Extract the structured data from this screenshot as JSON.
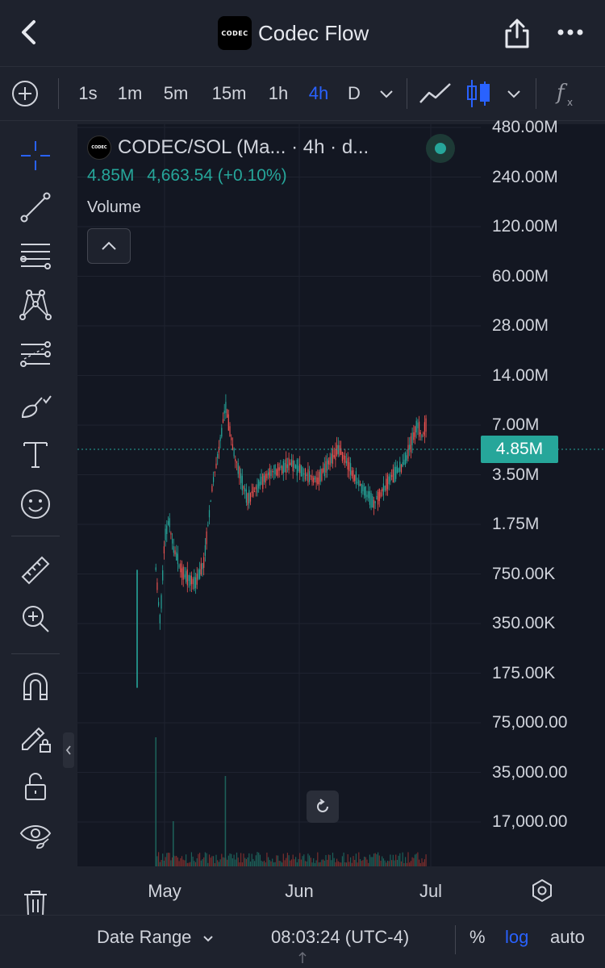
{
  "app": {
    "title": "Codec Flow",
    "logo_text": "CODEC"
  },
  "toolbar": {
    "intervals": [
      "1s",
      "1m",
      "5m",
      "15m",
      "1h",
      "4h",
      "D"
    ],
    "active_interval": "4h"
  },
  "left_tools": [
    "crosshair-icon",
    "trend-line-icon",
    "fib-retracement-icon",
    "pattern-icon",
    "prediction-icon",
    "brush-icon",
    "text-icon",
    "emoji-icon",
    "ruler-icon",
    "zoom-in-icon",
    "magnet-icon",
    "lock-drawing-icon",
    "unlock-icon",
    "eye-icon",
    "trash-icon"
  ],
  "legend": {
    "logo_text": "CODEC",
    "symbol": "CODEC/SOL (Ma... · 4h · d...",
    "last_price": "4.85M",
    "change": "4,663.54 (+0.10%)",
    "volume_label": "Volume",
    "status": "market-open"
  },
  "price_axis": {
    "labels": [
      "480.00M",
      "240.00M",
      "120.00M",
      "60.00M",
      "28.00M",
      "14.00M",
      "7.00M",
      "3.50M",
      "1.75M",
      "750.00K",
      "350.00K",
      "175.00K",
      "75,000.00",
      "35,000.00",
      "17,000.00"
    ],
    "current_price_tag": "4.85M",
    "scale": "log"
  },
  "time_axis": {
    "labels": [
      "May",
      "Jun",
      "Jul"
    ]
  },
  "bottom_bar": {
    "date_range_label": "Date Range",
    "clock": "08:03:24 (UTC-4)",
    "percent_label": "%",
    "log_label": "log",
    "auto_label": "auto",
    "log_active": true
  },
  "colors": {
    "background": "#131722",
    "panel": "#1e222d",
    "up": "#26a69a",
    "down": "#ef5350",
    "accent": "#2962ff"
  },
  "chart_data": {
    "type": "candlestick",
    "symbol": "CODEC/SOL",
    "interval": "4h",
    "scale": "log",
    "x_ticks": [
      "May",
      "Jun",
      "Jul"
    ],
    "y_ticks": [
      "480.00M",
      "240.00M",
      "120.00M",
      "60.00M",
      "28.00M",
      "14.00M",
      "7.00M",
      "3.50M",
      "1.75M",
      "750.00K",
      "350.00K",
      "175.00K",
      "75,000.00",
      "35,000.00",
      "17,000.00"
    ],
    "last_price": 4850000,
    "series": [
      {
        "name": "Price",
        "approx_close_path": [
          {
            "date": "Apr 29",
            "value": 80000
          },
          {
            "date": "Apr 29",
            "value": 500000
          },
          {
            "date": "Apr 30",
            "value": 220000
          },
          {
            "date": "May 1",
            "value": 800000
          },
          {
            "date": "May 2",
            "value": 1100000
          },
          {
            "date": "May 3",
            "value": 700000
          },
          {
            "date": "May 5",
            "value": 480000
          },
          {
            "date": "May 8",
            "value": 400000
          },
          {
            "date": "May 10",
            "value": 550000
          },
          {
            "date": "May 12",
            "value": 1800000
          },
          {
            "date": "May 14",
            "value": 4000000
          },
          {
            "date": "May 15",
            "value": 6500000
          },
          {
            "date": "May 17",
            "value": 3000000
          },
          {
            "date": "May 20",
            "value": 1500000
          },
          {
            "date": "May 25",
            "value": 2200000
          },
          {
            "date": "May 30",
            "value": 2600000
          },
          {
            "date": "Jun 5",
            "value": 2000000
          },
          {
            "date": "Jun 10",
            "value": 3300000
          },
          {
            "date": "Jun 15",
            "value": 1800000
          },
          {
            "date": "Jun 18",
            "value": 1400000
          },
          {
            "date": "Jun 22",
            "value": 2100000
          },
          {
            "date": "Jun 25",
            "value": 2600000
          },
          {
            "date": "Jun 28",
            "value": 4800000
          },
          {
            "date": "Jun 29",
            "value": 3900000
          },
          {
            "date": "Jun 30",
            "value": 4850000
          }
        ]
      },
      {
        "name": "Volume",
        "notable_spikes": [
          {
            "date": "Apr 29",
            "relative": 1.0
          },
          {
            "date": "May 15",
            "relative": 0.7
          },
          {
            "date": "May 3",
            "relative": 0.35
          }
        ]
      }
    ]
  }
}
